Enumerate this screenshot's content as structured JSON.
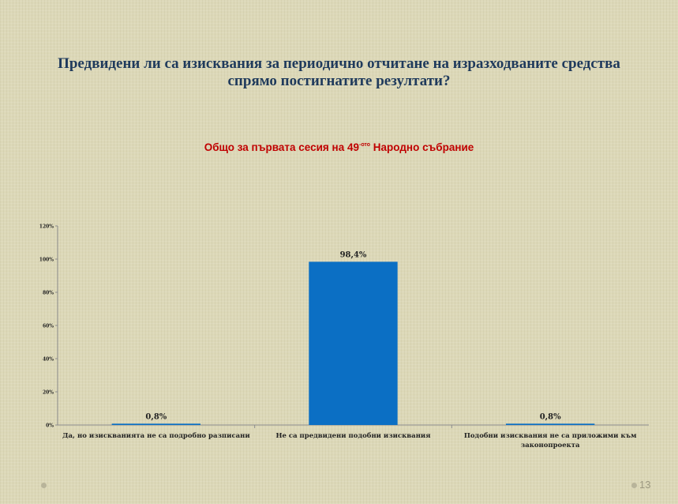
{
  "slide": {
    "title_line1": "Предвидени ли са изисквания за периодично отчитане на изразходваните средства",
    "title_line2": "спрямо постигнатите резултати?",
    "subtitle_main": "Общо за първата сесия на 49",
    "subtitle_sup": "-ото",
    "subtitle_tail": " Народно събрание",
    "page_number": "13"
  },
  "chart_data": {
    "type": "bar",
    "categories": [
      [
        "Да, но изискванията не са подробно разписани"
      ],
      [
        "Не са предвидени подобни изисквания"
      ],
      [
        "Подобни изисквания не са приложими към",
        "законопроекта"
      ]
    ],
    "values": [
      0.8,
      98.4,
      0.8
    ],
    "data_labels": [
      "0,8%",
      "98,4%",
      "0,8%"
    ],
    "y_ticks": [
      0,
      20,
      40,
      60,
      80,
      100,
      120
    ],
    "y_tick_labels": [
      "0%",
      "20%",
      "40%",
      "60%",
      "80%",
      "100%",
      "120%"
    ],
    "ylim": [
      0,
      120
    ],
    "bar_color": "#0b6fc4",
    "grid": false,
    "legend": "none"
  }
}
